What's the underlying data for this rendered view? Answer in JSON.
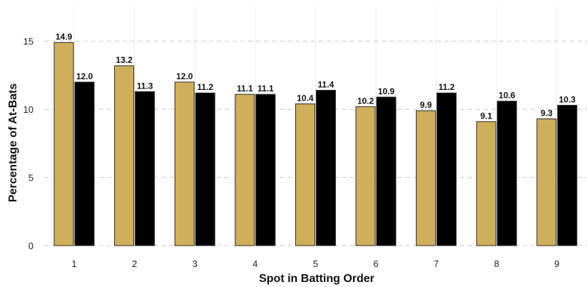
{
  "chart_data": {
    "type": "bar",
    "title": "",
    "xlabel": "Spot in Batting Order",
    "ylabel": "Percentage of At-Bats",
    "categories": [
      "1",
      "2",
      "3",
      "4",
      "5",
      "6",
      "7",
      "8",
      "9"
    ],
    "series": [
      {
        "color": "#cfaf5c",
        "values": [
          14.9,
          13.2,
          12.0,
          11.1,
          10.4,
          10.2,
          9.9,
          9.1,
          9.3
        ]
      },
      {
        "color": "#000000",
        "values": [
          12.0,
          11.3,
          11.2,
          11.1,
          11.4,
          10.9,
          11.2,
          10.6,
          10.3
        ]
      }
    ],
    "bar_labels": [
      [
        "14.9",
        "13.2",
        "12.0",
        "11.1",
        "10.4",
        "10.2",
        "9.9",
        "9.1",
        "9.3"
      ],
      [
        "12.0",
        "11.3",
        "11.2",
        "11.1",
        "11.4",
        "10.9",
        "11.2",
        "10.6",
        "10.3"
      ]
    ],
    "yticks": [
      0,
      5,
      10,
      15
    ],
    "ytick_labels": [
      "0",
      "5",
      "10",
      "15"
    ],
    "ylim": [
      0,
      17.5
    ],
    "grid": true,
    "legend": "none"
  }
}
